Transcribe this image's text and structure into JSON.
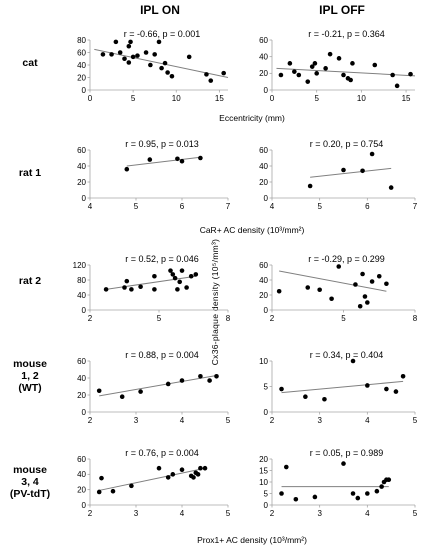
{
  "headers": {
    "col_left": "IPL ON",
    "col_right": "IPL OFF"
  },
  "y_axis_label": "Cx36-plaque density (10⁵/mm³)",
  "rows": [
    {
      "label": [
        "cat"
      ]
    },
    {
      "label": [
        "rat 1"
      ]
    },
    {
      "label": [
        "rat 2"
      ]
    },
    {
      "label": [
        "mouse",
        "1, 2",
        "(WT)"
      ]
    },
    {
      "label": [
        "mouse",
        "3, 4",
        "(PV-tdT)"
      ]
    }
  ],
  "x_labels": {
    "cat": "Eccentricity (mm)",
    "rat1": "CaR+ AC density (10³/mm²)",
    "mouse34": "Prox1+ AC density (10³/mm²)"
  },
  "colors": {
    "point": "#000000",
    "trend": "#808080",
    "axis": "#a6a6a6"
  },
  "chart_data": [
    {
      "type": "scatter",
      "panel": "cat-on",
      "stat": "r = -0.66, p = 0.001",
      "xlim": [
        0,
        16
      ],
      "xticks": [
        0,
        5,
        10,
        15
      ],
      "ylim": [
        0,
        80
      ],
      "yticks": [
        0,
        20,
        40,
        60,
        80
      ],
      "x": [
        1.5,
        2.5,
        3,
        3.5,
        4,
        4.5,
        4.5,
        4.7,
        5,
        5.5,
        6.5,
        7,
        7.5,
        8,
        8.3,
        8.7,
        9,
        9.5,
        11.5,
        13.5,
        14,
        15.5
      ],
      "y": [
        57,
        57,
        77,
        60,
        50,
        44,
        70,
        77,
        53,
        55,
        60,
        40,
        57,
        77,
        35,
        43,
        28,
        22,
        53,
        25,
        15,
        27
      ],
      "trend": [
        [
          0.5,
          65
        ],
        [
          16,
          20
        ]
      ],
      "xlabel_key": "cat"
    },
    {
      "type": "scatter",
      "panel": "cat-off",
      "stat": "r = -0.21, p = 0.364",
      "xlim": [
        0,
        16
      ],
      "xticks": [
        0,
        5,
        10,
        15
      ],
      "ylim": [
        0,
        60
      ],
      "yticks": [
        0,
        20,
        40,
        60
      ],
      "x": [
        1,
        2,
        2.5,
        3,
        4,
        4.5,
        4.8,
        5,
        6,
        6.5,
        7.5,
        8,
        8.5,
        8.8,
        9,
        11.5,
        13.5,
        14,
        15.5
      ],
      "y": [
        18,
        32,
        22,
        18,
        10,
        28,
        32,
        20,
        26,
        43,
        38,
        18,
        14,
        12,
        32,
        30,
        18,
        5,
        19
      ],
      "trend": [
        [
          0.5,
          26
        ],
        [
          16,
          17
        ]
      ],
      "xlabel_key": "cat"
    },
    {
      "type": "scatter",
      "panel": "rat1-on",
      "stat": "r = 0.95, p = 0.013",
      "xlim": [
        4,
        7
      ],
      "xticks": [
        4,
        5,
        6,
        7
      ],
      "ylim": [
        0,
        60
      ],
      "yticks": [
        0,
        20,
        40,
        60
      ],
      "x": [
        4.8,
        5.3,
        5.9,
        6.0,
        6.4
      ],
      "y": [
        36,
        48,
        49,
        46,
        50
      ],
      "trend": [
        [
          4.8,
          40
        ],
        [
          6.4,
          51
        ]
      ],
      "xlabel_key": "rat1"
    },
    {
      "type": "scatter",
      "panel": "rat1-off",
      "stat": "r = 0.20, p = 0.754",
      "xlim": [
        4,
        7
      ],
      "xticks": [
        4,
        5,
        6,
        7
      ],
      "ylim": [
        0,
        60
      ],
      "yticks": [
        0,
        20,
        40,
        60
      ],
      "x": [
        4.8,
        5.5,
        5.9,
        6.1,
        6.5
      ],
      "y": [
        15,
        35,
        34,
        55,
        13
      ],
      "trend": [
        [
          4.8,
          26
        ],
        [
          6.5,
          37
        ]
      ],
      "xlabel_key": "rat1"
    },
    {
      "type": "scatter",
      "panel": "rat2-on",
      "stat": "r = 0.52, p = 0.046",
      "xlim": [
        2,
        8
      ],
      "xticks": [
        2,
        5,
        8
      ],
      "ylim": [
        0,
        120
      ],
      "yticks": [
        0,
        40,
        80,
        120
      ],
      "x": [
        2.7,
        3.5,
        3.6,
        3.8,
        4.2,
        4.8,
        4.8,
        5.5,
        5.6,
        5.7,
        5.8,
        5.9,
        6.0,
        6.2,
        6.4,
        6.6
      ],
      "y": [
        55,
        60,
        77,
        55,
        62,
        55,
        90,
        105,
        95,
        85,
        55,
        75,
        105,
        60,
        90,
        95
      ],
      "trend": [
        [
          2.7,
          55
        ],
        [
          6.6,
          90
        ]
      ],
      "xlabel_key": null
    },
    {
      "type": "scatter",
      "panel": "rat2-off",
      "stat": "r = -0.29, p = 0.299",
      "xlim": [
        2,
        8
      ],
      "xticks": [
        2,
        5,
        8
      ],
      "ylim": [
        0,
        60
      ],
      "yticks": [
        0,
        20,
        40,
        60
      ],
      "x": [
        2.3,
        3.5,
        4.0,
        4.5,
        4.8,
        5.5,
        5.7,
        5.8,
        5.9,
        6.0,
        6.2,
        6.5,
        6.8
      ],
      "y": [
        25,
        30,
        27,
        15,
        58,
        34,
        5,
        48,
        18,
        10,
        38,
        45,
        35
      ],
      "trend": [
        [
          2.3,
          52
        ],
        [
          6.8,
          25
        ]
      ],
      "xlabel_key": null
    },
    {
      "type": "scatter",
      "panel": "mouse12-on",
      "stat": "r = 0.88, p = 0.004",
      "xlim": [
        2,
        5
      ],
      "xticks": [
        2,
        3,
        4,
        5
      ],
      "ylim": [
        0,
        60
      ],
      "yticks": [
        0,
        20,
        40,
        60
      ],
      "x": [
        2.2,
        2.7,
        3.1,
        3.7,
        4.0,
        4.4,
        4.6,
        4.75
      ],
      "y": [
        25,
        18,
        24,
        33,
        37,
        42,
        37,
        42
      ],
      "trend": [
        [
          2.2,
          19
        ],
        [
          4.75,
          43
        ]
      ],
      "xlabel_key": null
    },
    {
      "type": "scatter",
      "panel": "mouse12-off",
      "stat": "r = 0.34, p = 0.404",
      "xlim": [
        2,
        5
      ],
      "xticks": [
        2,
        3,
        4,
        5
      ],
      "ylim": [
        0,
        10
      ],
      "yticks": [
        0,
        5,
        10
      ],
      "x": [
        2.2,
        2.7,
        3.1,
        3.7,
        4.0,
        4.4,
        4.6,
        4.75
      ],
      "y": [
        4.5,
        3,
        2.5,
        10,
        5.2,
        4.5,
        4,
        7
      ],
      "trend": [
        [
          2.2,
          3.8
        ],
        [
          4.75,
          6
        ]
      ],
      "xlabel_key": null
    },
    {
      "type": "scatter",
      "panel": "mouse34-on",
      "stat": "r = 0.76, p = 0.004",
      "xlim": [
        2,
        5
      ],
      "xticks": [
        2,
        3,
        4,
        5
      ],
      "ylim": [
        0,
        60
      ],
      "yticks": [
        0,
        20,
        40,
        60
      ],
      "x": [
        2.2,
        2.25,
        2.5,
        2.9,
        3.5,
        3.7,
        3.8,
        4.0,
        4.2,
        4.25,
        4.3,
        4.35,
        4.4,
        4.5
      ],
      "y": [
        17,
        35,
        18,
        25,
        48,
        36,
        40,
        46,
        38,
        36,
        42,
        40,
        48,
        48
      ],
      "trend": [
        [
          2.2,
          19
        ],
        [
          4.5,
          48
        ]
      ],
      "xlabel_key": "mouse34"
    },
    {
      "type": "scatter",
      "panel": "mouse34-off",
      "stat": "r = 0.05, p = 0.989",
      "xlim": [
        2,
        5
      ],
      "xticks": [
        2,
        3,
        4,
        5
      ],
      "ylim": [
        0,
        20
      ],
      "yticks": [
        0,
        5,
        10,
        15,
        20
      ],
      "x": [
        2.2,
        2.3,
        2.5,
        2.9,
        3.5,
        3.7,
        3.8,
        4.0,
        4.2,
        4.3,
        4.35,
        4.4,
        4.45
      ],
      "y": [
        5,
        16.5,
        2.5,
        3.5,
        18,
        5,
        3,
        5,
        6,
        8,
        10,
        11,
        11
      ],
      "trend": [
        [
          2.2,
          8
        ],
        [
          4.45,
          8
        ]
      ],
      "xlabel_key": "mouse34"
    }
  ]
}
